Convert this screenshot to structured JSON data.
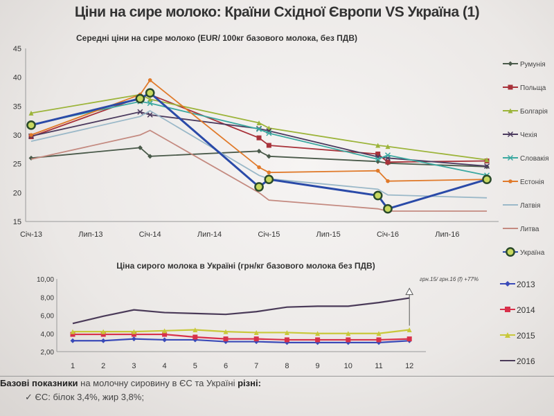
{
  "title": "Ціни на сире молоко: Країни Східної Європи VS Україна (1)",
  "chart_data": [
    {
      "type": "line",
      "title": "Середні ціни на сире молоко  (EUR/ 100кг базового молока, без ПДВ)",
      "x": [
        "2013-01",
        "2013-12",
        "2014-01",
        "2014-12",
        "2015-01",
        "2015-12",
        "2016-01",
        "2016-11"
      ],
      "xtick_labels": [
        "Січ-13",
        "Лип-13",
        "Січ-14",
        "Лип-14",
        "Січ-15",
        "Лип-15",
        "Січ-16",
        "Лип-16"
      ],
      "ylim": [
        15,
        45
      ],
      "yticks": [
        15,
        20,
        25,
        30,
        35,
        40,
        45
      ],
      "legend_placement": "right",
      "grid": false,
      "series": [
        {
          "name": "Румунія",
          "color": "#4a5a4a",
          "marker": "diamond",
          "values": [
            26,
            27.8,
            26.3,
            27.2,
            26.3,
            25.4,
            25.1,
            24.5
          ]
        },
        {
          "name": "Польща",
          "color": "#a8323a",
          "marker": "square",
          "values": [
            29.7,
            36.5,
            37,
            29.5,
            28.2,
            26.7,
            25.3,
            25.5
          ]
        },
        {
          "name": "Болгарія",
          "color": "#9cb43a",
          "marker": "triangle",
          "values": [
            33.8,
            37,
            36.2,
            32.1,
            31.2,
            28.2,
            28,
            25.7
          ]
        },
        {
          "name": "Чехія",
          "color": "#4b3a5e",
          "marker": "x",
          "values": [
            29.8,
            34,
            33.5,
            31.1,
            30.7,
            26.2,
            26,
            24.6
          ]
        },
        {
          "name": "Словакія",
          "color": "#3aa8a0",
          "marker": "x",
          "values": [
            31.8,
            35.8,
            35.5,
            31,
            30.3,
            25.8,
            26.5,
            23
          ]
        },
        {
          "name": "Естонія",
          "color": "#e07a2a",
          "marker": "circle",
          "values": [
            30,
            37,
            39.5,
            24.4,
            23.5,
            23.8,
            22,
            22.3
          ]
        },
        {
          "name": "Латвія",
          "color": "#9ab8c8",
          "marker": "none",
          "values": [
            28.9,
            33.2,
            34.2,
            23,
            22.4,
            20.6,
            19.6,
            19.1
          ]
        },
        {
          "name": "Литва",
          "color": "#c48a80",
          "marker": "none",
          "values": [
            25.8,
            30,
            30.8,
            20,
            18.7,
            17.2,
            16.8,
            16.8
          ]
        },
        {
          "name": "Україна",
          "color": "#2a4aa8",
          "marker": "ring",
          "values": [
            31.7,
            36.3,
            37.3,
            21,
            22.3,
            19.5,
            17.2,
            22.3
          ]
        }
      ]
    },
    {
      "type": "line",
      "title": "Ціна сирого молока в Україні  (грн/кг базового молока без ПДВ)",
      "categories": [
        1,
        2,
        3,
        4,
        5,
        6,
        7,
        8,
        9,
        10,
        11,
        12
      ],
      "ylim": [
        2,
        10
      ],
      "ytick_labels": [
        "2,00",
        "4,00",
        "6,00",
        "8,00",
        "10,00"
      ],
      "legend_placement": "right",
      "annotation": "грн.15/ грн.16 (f) +77%",
      "series": [
        {
          "name": "2013",
          "color": "#3a4ab8",
          "marker": "diamond",
          "values": [
            3.2,
            3.2,
            3.4,
            3.3,
            3.3,
            3.1,
            3.1,
            3.0,
            3.0,
            3.0,
            3.0,
            3.2
          ]
        },
        {
          "name": "2014",
          "color": "#d8304a",
          "marker": "square",
          "values": [
            3.9,
            3.9,
            3.9,
            3.9,
            3.6,
            3.4,
            3.4,
            3.3,
            3.3,
            3.3,
            3.3,
            3.4
          ]
        },
        {
          "name": "2015",
          "color": "#c8c83a",
          "marker": "triangle",
          "values": [
            4.2,
            4.2,
            4.2,
            4.3,
            4.4,
            4.2,
            4.1,
            4.1,
            4.0,
            4.0,
            4.0,
            4.4
          ]
        },
        {
          "name": "2016",
          "color": "#4a3a58",
          "marker": "none",
          "values": [
            5.1,
            5.9,
            6.6,
            6.3,
            6.2,
            6.1,
            6.4,
            6.9,
            7.0,
            7.0,
            7.4,
            7.9
          ]
        }
      ]
    }
  ],
  "note": {
    "bold1": "Базові показники",
    "text": " на молочну сировину в ЄС та Україні ",
    "bold2": "різні:",
    "bullet_icon": "checkmark-icon",
    "bullet": "ЄС: білок 3,4%, жир 3,8%;"
  }
}
